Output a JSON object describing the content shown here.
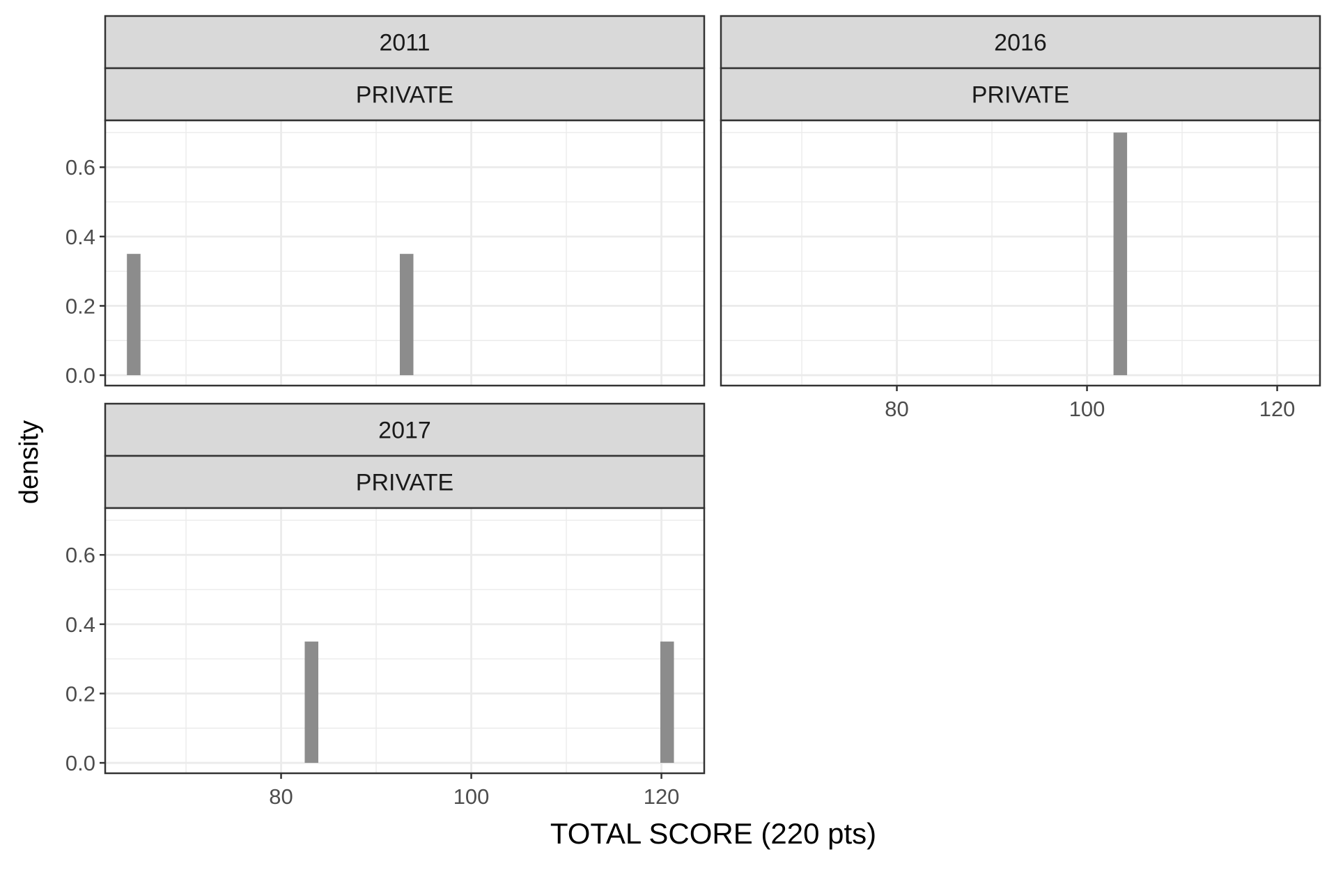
{
  "chart_data": {
    "type": "bar",
    "chart_kind": "faceted histogram",
    "xlabel": "TOTAL SCORE (220 pts)",
    "ylabel": "density",
    "xlim": [
      61.5,
      124.5
    ],
    "ylim": [
      -0.03,
      0.735
    ],
    "x_ticks": [
      80,
      100,
      120
    ],
    "y_ticks": [
      0.0,
      0.2,
      0.4,
      0.6
    ],
    "y_tick_labels": [
      "0.0",
      "0.2",
      "0.4",
      "0.6"
    ],
    "bin_width": 1.43,
    "grid": true,
    "bar_color": "#8c8c8c",
    "strip_fill": "#d9d9d9",
    "panels": [
      {
        "year": "2011",
        "type": "PRIVATE",
        "bars": [
          {
            "x": 64.5,
            "density": 0.35
          },
          {
            "x": 93.2,
            "density": 0.35
          }
        ]
      },
      {
        "year": "2016",
        "type": "PRIVATE",
        "bars": [
          {
            "x": 103.5,
            "density": 0.7
          }
        ]
      },
      {
        "year": "2017",
        "type": "PRIVATE",
        "bars": [
          {
            "x": 83.2,
            "density": 0.35
          },
          {
            "x": 120.6,
            "density": 0.35
          }
        ]
      }
    ]
  }
}
